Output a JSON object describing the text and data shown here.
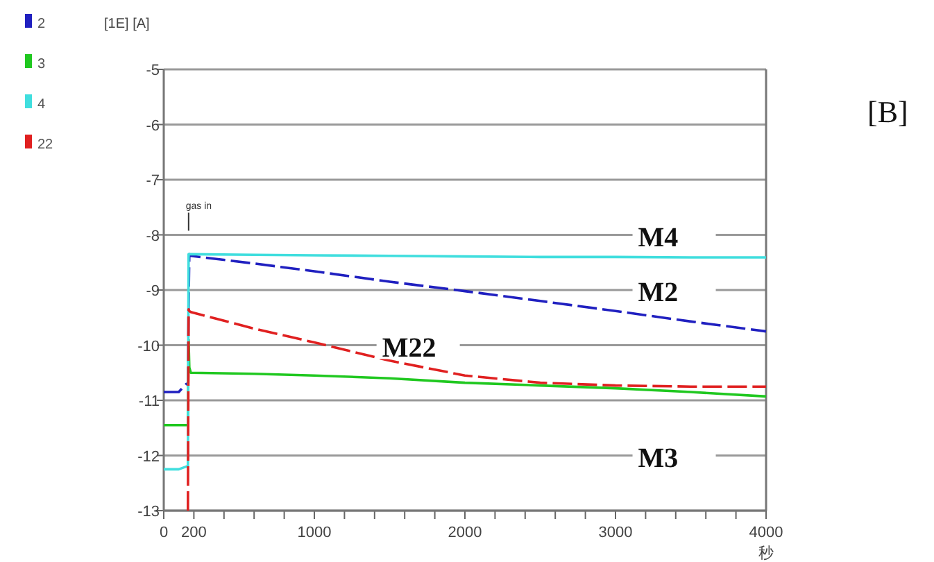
{
  "chart_data": {
    "type": "line",
    "xlabel": "秒",
    "ylabel": "[1E] [A]",
    "x": [
      0,
      100,
      150,
      160,
      165,
      170,
      180,
      600,
      1000,
      1500,
      2000,
      2500,
      3000,
      3500,
      4000
    ],
    "series": [
      {
        "name": "2",
        "color": "#2020c0",
        "line_style": "dashed",
        "values": [
          -10.85,
          -10.85,
          -10.7,
          -10.7,
          -9.25,
          -8.35,
          -8.38,
          -8.52,
          -8.66,
          -8.85,
          -9.02,
          -9.2,
          -9.38,
          -9.57,
          -9.75
        ]
      },
      {
        "name": "3",
        "color": "#20c820",
        "line_style": "solid",
        "values": [
          -11.45,
          -11.45,
          -11.45,
          -11.45,
          -9.9,
          -10.4,
          -10.5,
          -10.52,
          -10.55,
          -10.6,
          -10.68,
          -10.73,
          -10.78,
          -10.85,
          -10.93
        ]
      },
      {
        "name": "4",
        "color": "#40dede",
        "line_style": "solid",
        "values": [
          -12.25,
          -12.25,
          -12.2,
          -12.2,
          -8.35,
          -8.35,
          -8.35,
          -8.36,
          -8.37,
          -8.38,
          -8.39,
          -8.4,
          -8.4,
          -8.41,
          -8.41
        ]
      },
      {
        "name": "22",
        "color": "#e02020",
        "line_style": "dashed",
        "values": [
          null,
          null,
          null,
          -13,
          -9.35,
          -9.38,
          -9.4,
          -9.7,
          -9.95,
          -10.28,
          -10.55,
          -10.68,
          -10.73,
          -10.75,
          -10.75
        ]
      }
    ],
    "xlim": [
      0,
      4000
    ],
    "ylim": [
      -13,
      -5
    ],
    "xticks": [
      0,
      200,
      {
        "value": 400,
        "label": null
      },
      {
        "value": 600,
        "label": null
      },
      {
        "value": 800,
        "label": null
      },
      1000,
      {
        "value": 1200,
        "label": null
      },
      {
        "value": 1400,
        "label": null
      },
      {
        "value": 1600,
        "label": null
      },
      {
        "value": 1800,
        "label": null
      },
      2000,
      {
        "value": 2200,
        "label": null
      },
      {
        "value": 2400,
        "label": null
      },
      {
        "value": 2600,
        "label": null
      },
      {
        "value": 2800,
        "label": null
      },
      3000,
      {
        "value": 3200,
        "label": null
      },
      {
        "value": 3400,
        "label": null
      },
      {
        "value": 3600,
        "label": null
      },
      {
        "value": 3800,
        "label": null
      },
      4000
    ],
    "yticks": [
      -5,
      -6,
      -7,
      -8,
      -9,
      -10,
      -11,
      -12,
      -13
    ],
    "grid": "y",
    "legend": "top left",
    "annotations": [
      "gas in",
      "M4",
      "M2",
      "M22",
      "M3",
      "[B]"
    ]
  }
}
